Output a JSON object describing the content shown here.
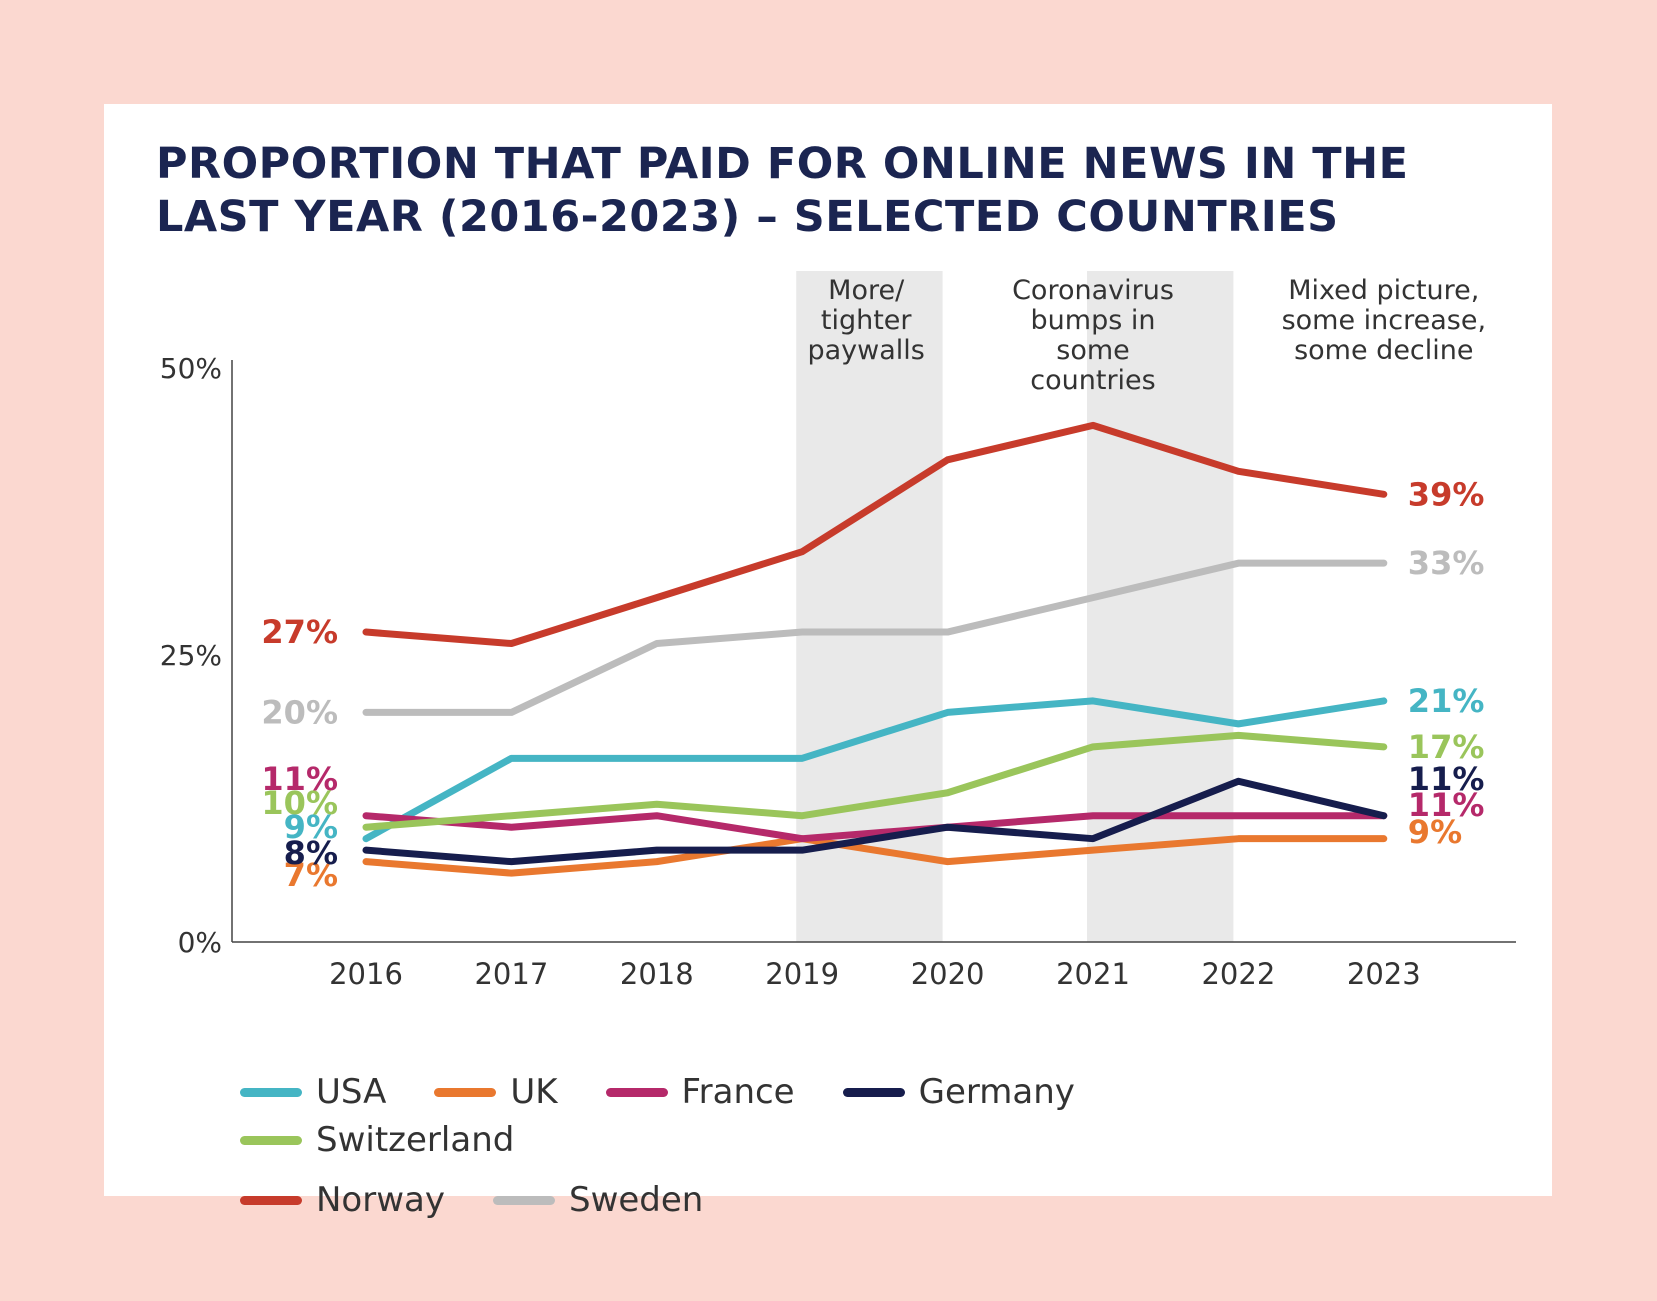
{
  "title": "PROPORTION THAT PAID FOR ONLINE NEWS IN THE LAST YEAR (2016-2023) – SELECTED COUNTRIES",
  "colors": {
    "background": "#fbd8d0",
    "title": "#1b2551",
    "band": "#e9e9e9"
  },
  "chart_data": {
    "type": "line",
    "categories": [
      "2016",
      "2017",
      "2018",
      "2019",
      "2020",
      "2021",
      "2022",
      "2023"
    ],
    "ylim": [
      0,
      50
    ],
    "yticks": [
      "0%",
      "25%",
      "50%"
    ],
    "ytick_values": [
      0,
      25,
      50
    ],
    "grid": false,
    "legend_position": "bottom",
    "series": [
      {
        "name": "USA",
        "color": "#45b5c4",
        "values": [
          9,
          16,
          16,
          16,
          20,
          21,
          19,
          21
        ],
        "start_label": "9%",
        "end_label": "21%"
      },
      {
        "name": "UK",
        "color": "#e9782f",
        "values": [
          7,
          6,
          7,
          9,
          7,
          8,
          9,
          9
        ],
        "start_label": "7%",
        "end_label": "9%"
      },
      {
        "name": "France",
        "color": "#b5296a",
        "values": [
          11,
          10,
          11,
          9,
          10,
          11,
          11,
          11
        ],
        "start_label": "11%",
        "end_label": "11%"
      },
      {
        "name": "Germany",
        "color": "#161d4d",
        "values": [
          8,
          7,
          8,
          8,
          10,
          9,
          14,
          11
        ],
        "start_label": "8%",
        "end_label": "11%"
      },
      {
        "name": "Switzerland",
        "color": "#9ac55b",
        "values": [
          10,
          11,
          12,
          11,
          13,
          17,
          18,
          17
        ],
        "start_label": "10%",
        "end_label": "17%"
      },
      {
        "name": "Norway",
        "color": "#c73b2b",
        "values": [
          27,
          26,
          30,
          34,
          42,
          45,
          41,
          39
        ],
        "start_label": "27%",
        "end_label": "39%"
      },
      {
        "name": "Sweden",
        "color": "#bcbcbc",
        "values": [
          20,
          20,
          26,
          27,
          27,
          30,
          33,
          33
        ],
        "start_label": "20%",
        "end_label": "33%"
      }
    ],
    "annotations": [
      {
        "text": [
          "More/",
          "tighter",
          "paywalls"
        ],
        "band": [
          "2019",
          "2020"
        ]
      },
      {
        "text": [
          "Coronavirus",
          "bumps in",
          "some",
          "countries"
        ],
        "band": [
          "2021",
          "2022"
        ]
      },
      {
        "text": [
          "Mixed picture,",
          "some increase,",
          "some decline"
        ],
        "band": null
      }
    ]
  }
}
